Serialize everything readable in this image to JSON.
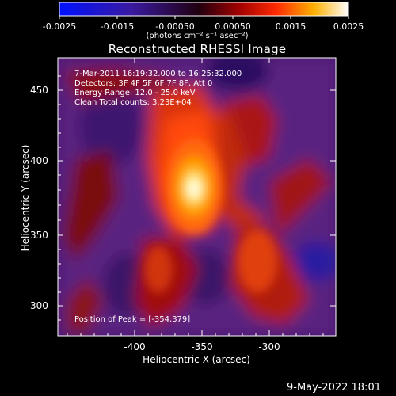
{
  "colorbar": {
    "ticks": [
      "-0.0025",
      "-0.0015",
      "-0.00050",
      "0.00050",
      "0.0015",
      "0.0025"
    ],
    "units": "(photons cm⁻² s⁻¹ asec⁻²)"
  },
  "title": "Reconstructed RHESSI Image",
  "overlay": {
    "time_range": "7-Mar-2011 16:19:32.000 to 16:25:32.000",
    "detectors": "Detectors: 3F 4F 5F 6F 7F 8F, Att 0",
    "energy": "Energy Range: 12.0 - 25.0 keV",
    "method": "Clean     Total counts: 3.23E+04",
    "peak": "Position of Peak = [-354,379]"
  },
  "axes": {
    "xlabel": "Heliocentric X (arcsec)",
    "ylabel": "Heliocentric Y (arcsec)",
    "xticks": [
      "-400",
      "-350",
      "-300"
    ],
    "yticks": [
      "450",
      "400",
      "350",
      "300"
    ]
  },
  "footer_date": "9-May-2022 18:01",
  "colors": {
    "background": "#000000",
    "colormap": [
      "#0000ff",
      "#000000",
      "#ff0000",
      "#ffff00",
      "#ffffff"
    ]
  }
}
